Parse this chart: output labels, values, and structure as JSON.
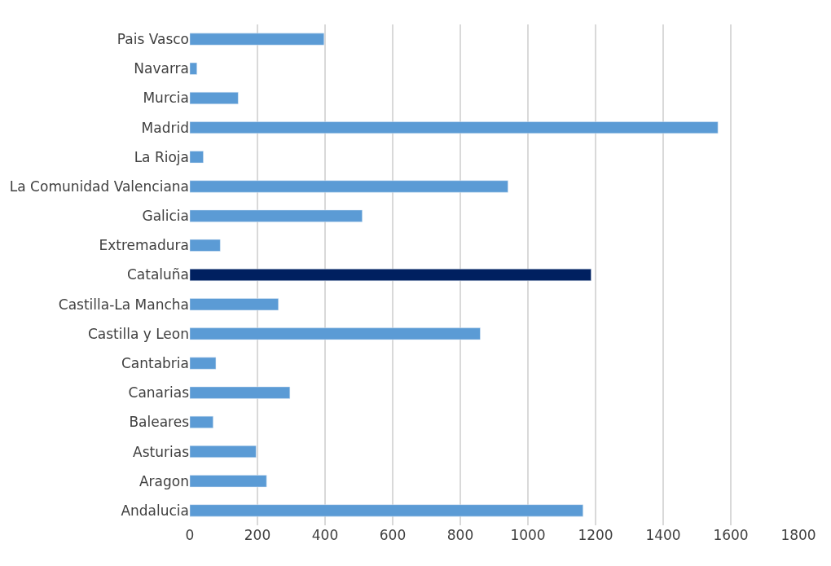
{
  "chart_data": {
    "type": "bar",
    "orientation": "horizontal",
    "categories": [
      "Pais Vasco",
      "Navarra",
      "Murcia",
      "Madrid",
      "La Rioja",
      "La Comunidad Valenciana",
      "Galicia",
      "Extremadura",
      "Cataluña",
      "Castilla-La Mancha",
      "Castilla y Leon",
      "Cantabria",
      "Canarias",
      "Baleares",
      "Asturias",
      "Aragon",
      "Andalucia"
    ],
    "values": [
      397,
      21,
      143,
      1562,
      40,
      941,
      510,
      90,
      1187,
      262,
      859,
      77,
      296,
      69,
      196,
      227,
      1163
    ],
    "colors": [
      "#5b9bd5",
      "#5b9bd5",
      "#5b9bd5",
      "#5b9bd5",
      "#5b9bd5",
      "#5b9bd5",
      "#5b9bd5",
      "#5b9bd5",
      "#002060",
      "#5b9bd5",
      "#5b9bd5",
      "#5b9bd5",
      "#5b9bd5",
      "#5b9bd5",
      "#5b9bd5",
      "#5b9bd5",
      "#5b9bd5"
    ],
    "xlim": [
      0,
      1800
    ],
    "xticks": [
      0,
      200,
      400,
      600,
      800,
      1000,
      1200,
      1400,
      1600,
      1800
    ],
    "grid": "x",
    "legend": false
  }
}
